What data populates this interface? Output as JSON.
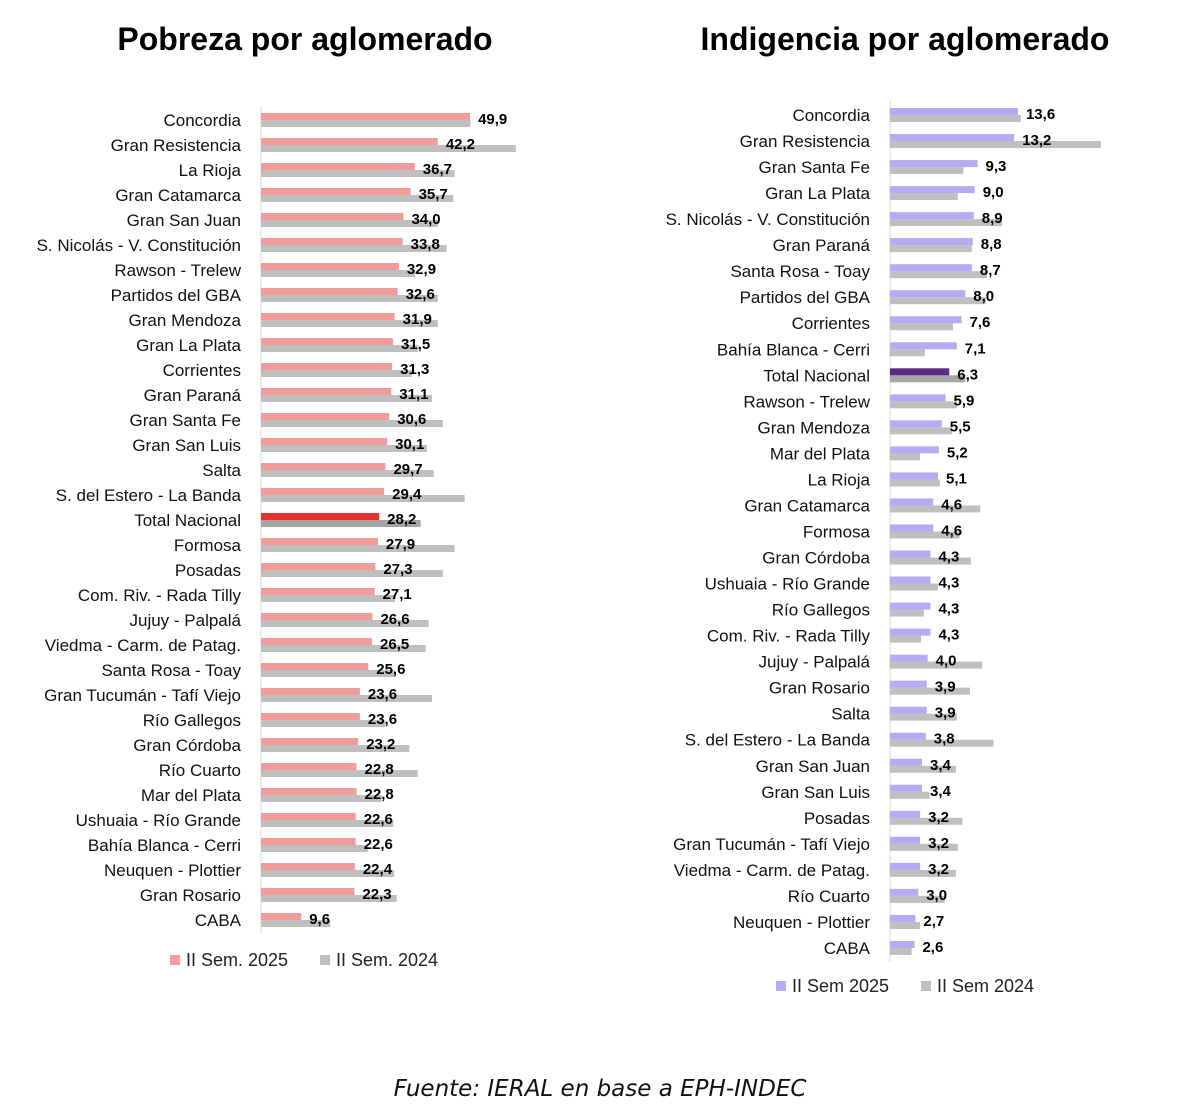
{
  "source": "Fuente: IERAL en base a EPH-INDEC",
  "chart_data": [
    {
      "type": "bar",
      "orientation": "horizontal",
      "title": "Pobreza por aglomerado",
      "highlight": "Total Nacional",
      "legend_position": "bottom",
      "grid": false,
      "categories": [
        "Concordia",
        "Gran Resistencia",
        "La Rioja",
        "Gran Catamarca",
        "Gran San Juan",
        "S. Nicolás - V. Constitución",
        "Rawson - Trelew",
        "Partidos del GBA",
        "Gran Mendoza",
        "Gran La Plata",
        "Corrientes",
        "Gran Paraná",
        "Gran Santa Fe",
        "Gran San Luis",
        "Salta",
        "S. del Estero - La Banda",
        "Total Nacional",
        "Formosa",
        "Posadas",
        "Com. Riv. - Rada Tilly",
        "Jujuy - Palpalá",
        "Viedma - Carm. de Patag.",
        "Santa Rosa - Toay",
        "Gran Tucumán - Tafí Viejo",
        "Río Gallegos",
        "Gran Córdoba",
        "Río Cuarto",
        "Mar del Plata",
        "Ushuaia - Río Grande",
        "Bahía Blanca - Cerri",
        "Neuquen - Plottier",
        "Gran Rosario",
        "CABA"
      ],
      "series": [
        {
          "name": "II Sem. 2025",
          "color": "#f19b9b",
          "highlight_color": "#e3322b",
          "values": [
            49.9,
            42.2,
            36.7,
            35.7,
            34.0,
            33.8,
            32.9,
            32.6,
            31.9,
            31.5,
            31.3,
            31.1,
            30.6,
            30.1,
            29.7,
            29.4,
            28.2,
            27.9,
            27.3,
            27.1,
            26.6,
            26.5,
            25.6,
            23.6,
            23.6,
            23.2,
            22.8,
            22.8,
            22.6,
            22.6,
            22.4,
            22.3,
            9.6
          ],
          "labels": [
            "49,9",
            "42,2",
            "36,7",
            "35,7",
            "34,0",
            "33,8",
            "32,9",
            "32,6",
            "31,9",
            "31,5",
            "31,3",
            "31,1",
            "30,6",
            "30,1",
            "29,7",
            "29,4",
            "28,2",
            "27,9",
            "27,3",
            "27,1",
            "26,6",
            "26,5",
            "25,6",
            "23,6",
            "23,6",
            "23,2",
            "22,8",
            "22,8",
            "22,6",
            "22,6",
            "22,4",
            "22,3",
            "9,6"
          ]
        },
        {
          "name": "II Sem. 2024",
          "color": "#bfbfbf",
          "highlight_color": "#a5a5a5",
          "values": [
            50.0,
            60.8,
            46.2,
            45.9,
            42.2,
            44.3,
            36.8,
            42.2,
            42.2,
            37.4,
            36.0,
            40.8,
            43.4,
            39.6,
            41.2,
            48.6,
            38.1,
            46.2,
            43.4,
            32.0,
            40.0,
            39.3,
            32.0,
            40.8,
            29.6,
            35.4,
            37.4,
            28.8,
            31.6,
            25.5,
            31.8,
            32.4,
            16.5
          ]
        }
      ],
      "xlim": [
        0,
        62
      ]
    },
    {
      "type": "bar",
      "orientation": "horizontal",
      "title": "Indigencia por aglomerado",
      "highlight": "Total Nacional",
      "legend_position": "bottom",
      "grid": false,
      "categories": [
        "Concordia",
        "Gran Resistencia",
        "Gran Santa Fe",
        "Gran La Plata",
        "S. Nicolás - V. Constitución",
        "Gran Paraná",
        "Santa Rosa - Toay",
        "Partidos del GBA",
        "Corrientes",
        "Bahía Blanca - Cerri",
        "Total Nacional",
        "Rawson - Trelew",
        "Gran Mendoza",
        "Mar del Plata",
        "La Rioja",
        "Gran Catamarca",
        "Formosa",
        "Gran Córdoba",
        "Ushuaia - Río Grande",
        "Río Gallegos",
        "Com. Riv. - Rada Tilly",
        "Jujuy - Palpalá",
        "Gran Rosario",
        "Salta",
        "S. del Estero - La Banda",
        "Gran San Juan",
        "Gran San Luis",
        "Posadas",
        "Gran Tucumán - Tafí Viejo",
        "Viedma - Carm. de Patag.",
        "Río Cuarto",
        "Neuquen - Plottier",
        "CABA"
      ],
      "series": [
        {
          "name": "II Sem 2025",
          "color": "#b6aaf2",
          "highlight_color": "#5a2a85",
          "values": [
            13.6,
            13.2,
            9.3,
            9.0,
            8.9,
            8.8,
            8.7,
            8.0,
            7.6,
            7.1,
            6.3,
            5.9,
            5.5,
            5.2,
            5.1,
            4.6,
            4.6,
            4.3,
            4.3,
            4.3,
            4.3,
            4.0,
            3.9,
            3.9,
            3.8,
            3.4,
            3.4,
            3.2,
            3.2,
            3.2,
            3.0,
            2.7,
            2.6
          ],
          "labels": [
            "13,6",
            "13,2",
            "9,3",
            "9,0",
            "8,9",
            "8,8",
            "8,7",
            "8,0",
            "7,6",
            "7,1",
            "6,3",
            "5,9",
            "5,5",
            "5,2",
            "5,1",
            "4,6",
            "4,6",
            "4,3",
            "4,3",
            "4,3",
            "4,3",
            "4,0",
            "3,9",
            "3,9",
            "3,8",
            "3,4",
            "3,4",
            "3,2",
            "3,2",
            "3,2",
            "3,0",
            "2,7",
            "2,6"
          ]
        },
        {
          "name": "II Sem 2024",
          "color": "#bfbfbf",
          "highlight_color": "#a5a5a5",
          "values": [
            13.9,
            22.4,
            7.8,
            7.2,
            11.9,
            8.7,
            10.3,
            10.2,
            6.7,
            3.7,
            8.0,
            7.1,
            6.6,
            3.2,
            5.3,
            9.6,
            7.4,
            8.6,
            5.1,
            3.6,
            3.3,
            9.8,
            8.5,
            7.1,
            11.0,
            7.0,
            4.2,
            7.7,
            7.2,
            7.0,
            5.8,
            3.2,
            2.3
          ]
        }
      ],
      "xlim": [
        0,
        23
      ]
    }
  ]
}
